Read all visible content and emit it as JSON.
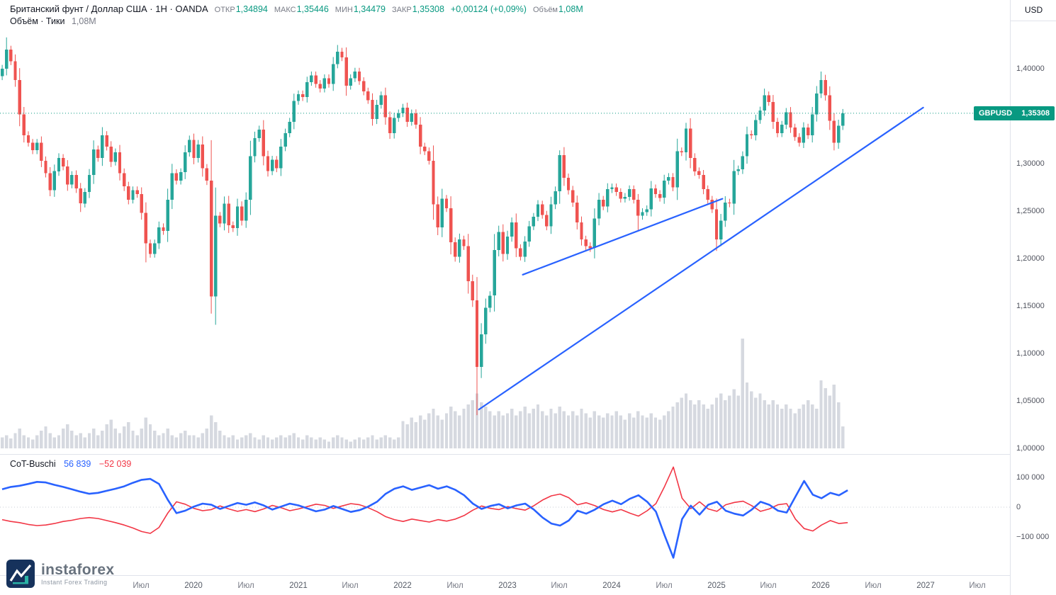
{
  "header": {
    "title": "Британский фунт / Доллар США · 1Н · OANDA",
    "ohlc": [
      {
        "label": "ОТКР",
        "value": "1,34894"
      },
      {
        "label": "МАКС",
        "value": "1,35446"
      },
      {
        "label": "МИН",
        "value": "1,34479"
      },
      {
        "label": "ЗАКР",
        "value": "1,35308"
      }
    ],
    "change": "+0,00124 (+0,09%)",
    "volume_label": "Объём",
    "volume_value": "1,08М",
    "volume_legend": "Объём · Тики",
    "volume_legend_value": "1,08М"
  },
  "price_label": {
    "symbol": "GBPUSD",
    "value": "1,35308"
  },
  "axis_currency": "USD",
  "cot_legend": {
    "name": "CoT-Buschi",
    "blue_value": "56 839",
    "red_value": "−52 039"
  },
  "logo": {
    "name": "instaforex",
    "tagline": "Instant Forex Trading"
  },
  "colors": {
    "candle_up": "#26a69a",
    "candle_down": "#ef5350",
    "accent_teal": "#089981",
    "accent_red": "#f23645",
    "cot_blue": "#2962ff",
    "trend_blue": "#2962ff",
    "volume_bar": "#c8ccd6",
    "axis_border": "#e0e3eb",
    "badge_bg": "#089981"
  },
  "chart_data": {
    "type": "candlestick",
    "symbol": "GBPUSD",
    "timeframe": "1Н",
    "exchange": "OANDA",
    "open": 1.34894,
    "high": 1.35446,
    "low": 1.34479,
    "close": 1.35308,
    "change": 0.00124,
    "change_pct": 0.09,
    "volume": "1,08М",
    "t_start": 2018.17,
    "t_step_years": 0.0416667,
    "open_first": 1.392,
    "closes": [
      1.4,
      1.42,
      1.408,
      1.388,
      1.352,
      1.33,
      1.322,
      1.314,
      1.322,
      1.303,
      1.29,
      1.272,
      1.292,
      1.306,
      1.297,
      1.278,
      1.288,
      1.274,
      1.258,
      1.27,
      1.288,
      1.315,
      1.306,
      1.33,
      1.318,
      1.302,
      1.312,
      1.29,
      1.276,
      1.262,
      1.272,
      1.268,
      1.248,
      1.216,
      1.205,
      1.216,
      1.233,
      1.229,
      1.262,
      1.29,
      1.282,
      1.291,
      1.312,
      1.325,
      1.306,
      1.32,
      1.295,
      1.282,
      1.16,
      1.245,
      1.237,
      1.258,
      1.235,
      1.232,
      1.255,
      1.24,
      1.262,
      1.308,
      1.327,
      1.336,
      1.308,
      1.292,
      1.304,
      1.295,
      1.318,
      1.332,
      1.344,
      1.366,
      1.373,
      1.37,
      1.386,
      1.393,
      1.384,
      1.379,
      1.39,
      1.384,
      1.405,
      1.418,
      1.412,
      1.382,
      1.39,
      1.397,
      1.387,
      1.376,
      1.367,
      1.347,
      1.362,
      1.372,
      1.349,
      1.332,
      1.348,
      1.353,
      1.359,
      1.344,
      1.353,
      1.341,
      1.318,
      1.313,
      1.303,
      1.257,
      1.233,
      1.263,
      1.253,
      1.217,
      1.202,
      1.22,
      1.213,
      1.176,
      1.156,
      1.086,
      1.12,
      1.148,
      1.161,
      1.209,
      1.228,
      1.205,
      1.223,
      1.238,
      1.211,
      1.202,
      1.218,
      1.234,
      1.244,
      1.257,
      1.246,
      1.234,
      1.257,
      1.271,
      1.309,
      1.285,
      1.272,
      1.259,
      1.238,
      1.22,
      1.213,
      1.211,
      1.242,
      1.262,
      1.255,
      1.273,
      1.275,
      1.27,
      1.263,
      1.265,
      1.273,
      1.262,
      1.245,
      1.249,
      1.252,
      1.274,
      1.268,
      1.264,
      1.282,
      1.286,
      1.275,
      1.313,
      1.312,
      1.337,
      1.306,
      1.292,
      1.288,
      1.273,
      1.262,
      1.252,
      1.22,
      1.24,
      1.259,
      1.258,
      1.292,
      1.294,
      1.308,
      1.331,
      1.33,
      1.346,
      1.356,
      1.372,
      1.365,
      1.344,
      1.332,
      1.341,
      1.354,
      1.338,
      1.328,
      1.322,
      1.338,
      1.33,
      1.352,
      1.374,
      1.388,
      1.372,
      1.345,
      1.322,
      1.34,
      1.353
    ],
    "wick_overrides": {
      "1": {
        "h": 1.433
      },
      "18": {
        "l": 1.249
      },
      "33": {
        "l": 1.196
      },
      "48": {
        "l": 1.142
      },
      "77": {
        "h": 1.425
      },
      "109": {
        "l": 1.035
      },
      "128": {
        "h": 1.314
      },
      "146": {
        "l": 1.23
      },
      "157": {
        "h": 1.343
      },
      "164": {
        "l": 1.208
      },
      "175": {
        "h": 1.379
      },
      "188": {
        "h": 1.397
      }
    },
    "volume_rel": [
      0.1,
      0.12,
      0.09,
      0.14,
      0.18,
      0.12,
      0.1,
      0.08,
      0.12,
      0.16,
      0.2,
      0.14,
      0.1,
      0.12,
      0.18,
      0.22,
      0.16,
      0.12,
      0.14,
      0.1,
      0.14,
      0.18,
      0.12,
      0.16,
      0.22,
      0.26,
      0.18,
      0.14,
      0.2,
      0.24,
      0.16,
      0.12,
      0.18,
      0.28,
      0.22,
      0.16,
      0.12,
      0.14,
      0.18,
      0.12,
      0.1,
      0.14,
      0.16,
      0.12,
      0.12,
      0.1,
      0.14,
      0.18,
      0.3,
      0.24,
      0.16,
      0.12,
      0.1,
      0.12,
      0.08,
      0.1,
      0.12,
      0.14,
      0.1,
      0.08,
      0.12,
      0.1,
      0.08,
      0.1,
      0.12,
      0.1,
      0.12,
      0.14,
      0.1,
      0.08,
      0.12,
      0.1,
      0.08,
      0.1,
      0.08,
      0.06,
      0.1,
      0.12,
      0.1,
      0.08,
      0.06,
      0.08,
      0.1,
      0.08,
      0.1,
      0.12,
      0.08,
      0.1,
      0.12,
      0.1,
      0.08,
      0.1,
      0.25,
      0.22,
      0.28,
      0.24,
      0.3,
      0.26,
      0.32,
      0.36,
      0.3,
      0.26,
      0.32,
      0.38,
      0.34,
      0.3,
      0.36,
      0.4,
      0.44,
      0.5,
      0.42,
      0.38,
      0.34,
      0.3,
      0.34,
      0.3,
      0.32,
      0.36,
      0.3,
      0.34,
      0.38,
      0.32,
      0.36,
      0.4,
      0.34,
      0.3,
      0.36,
      0.32,
      0.38,
      0.34,
      0.3,
      0.34,
      0.3,
      0.36,
      0.32,
      0.28,
      0.34,
      0.3,
      0.28,
      0.32,
      0.3,
      0.34,
      0.3,
      0.26,
      0.32,
      0.28,
      0.34,
      0.3,
      0.28,
      0.32,
      0.28,
      0.26,
      0.3,
      0.34,
      0.38,
      0.42,
      0.46,
      0.5,
      0.44,
      0.4,
      0.44,
      0.4,
      0.36,
      0.4,
      0.46,
      0.5,
      0.44,
      0.48,
      0.54,
      0.48,
      1.0,
      0.6,
      0.52,
      0.46,
      0.5,
      0.44,
      0.4,
      0.44,
      0.4,
      0.36,
      0.4,
      0.36,
      0.32,
      0.36,
      0.4,
      0.44,
      0.4,
      0.36,
      0.62,
      0.55,
      0.48,
      0.58,
      0.42,
      0.2
    ],
    "trendlines": [
      {
        "t1": 2022.73,
        "p1": 1.041,
        "t2": 2026.98,
        "p2": 1.359
      },
      {
        "t1": 2023.15,
        "p1": 1.183,
        "t2": 2025.06,
        "p2": 1.263
      }
    ],
    "close_line_price": 1.35308,
    "price_axis": {
      "ticks": [
        {
          "label": "1,40000",
          "price": 1.4
        },
        {
          "label": "1,30000",
          "price": 1.3
        },
        {
          "label": "1,25000",
          "price": 1.25
        },
        {
          "label": "1,20000",
          "price": 1.2
        },
        {
          "label": "1,15000",
          "price": 1.15
        },
        {
          "label": "1,10000",
          "price": 1.1
        },
        {
          "label": "1,05000",
          "price": 1.05
        },
        {
          "label": "1,00000",
          "price": 1.0
        }
      ]
    },
    "time_ticks": [
      {
        "label": "Июл",
        "t": 2019.5,
        "major": false
      },
      {
        "label": "2020",
        "t": 2020,
        "major": true
      },
      {
        "label": "Июл",
        "t": 2020.5,
        "major": false
      },
      {
        "label": "2021",
        "t": 2021,
        "major": true
      },
      {
        "label": "Июл",
        "t": 2021.5,
        "major": false
      },
      {
        "label": "2022",
        "t": 2022,
        "major": true
      },
      {
        "label": "Июл",
        "t": 2022.5,
        "major": false
      },
      {
        "label": "2023",
        "t": 2023,
        "major": true
      },
      {
        "label": "Июл",
        "t": 2023.5,
        "major": false
      },
      {
        "label": "2024",
        "t": 2024,
        "major": true
      },
      {
        "label": "Июл",
        "t": 2024.5,
        "major": false
      },
      {
        "label": "2025",
        "t": 2025,
        "major": true
      },
      {
        "label": "Июл",
        "t": 2025.5,
        "major": false
      },
      {
        "label": "2026",
        "t": 2026,
        "major": true
      },
      {
        "label": "Июл",
        "t": 2026.5,
        "major": false
      },
      {
        "label": "2027",
        "t": 2027,
        "major": true
      },
      {
        "label": "Июл",
        "t": 2027.5,
        "major": false
      }
    ],
    "cot": {
      "title": "CoT-Buschi",
      "blue_last": 56839,
      "red_last": -52039,
      "axis_ticks": [
        {
          "label": "100 000",
          "v": 100
        },
        {
          "label": "0",
          "v": 0
        },
        {
          "label": "−100 000",
          "v": -100
        }
      ],
      "blue_k": [
        60,
        68,
        72,
        78,
        85,
        83,
        75,
        68,
        60,
        52,
        45,
        48,
        55,
        62,
        70,
        82,
        92,
        95,
        78,
        25,
        -20,
        -12,
        2,
        12,
        8,
        -6,
        4,
        14,
        8,
        16,
        6,
        -8,
        2,
        12,
        6,
        -4,
        -14,
        -8,
        4,
        -6,
        -16,
        -10,
        2,
        18,
        45,
        62,
        70,
        58,
        66,
        74,
        62,
        70,
        58,
        40,
        12,
        -6,
        4,
        10,
        -4,
        6,
        12,
        -8,
        -35,
        -55,
        -62,
        -45,
        -12,
        -22,
        -8,
        10,
        22,
        10,
        28,
        40,
        18,
        -15,
        -95,
        -170,
        -40,
        5,
        -25,
        8,
        18,
        -12,
        -22,
        -28,
        -8,
        18,
        8,
        -12,
        -18,
        35,
        88,
        42,
        30,
        48,
        40,
        57
      ],
      "red_k": [
        -42,
        -48,
        -52,
        -58,
        -62,
        -60,
        -55,
        -48,
        -44,
        -38,
        -35,
        -38,
        -45,
        -52,
        -60,
        -70,
        -82,
        -88,
        -68,
        -20,
        18,
        10,
        -4,
        -12,
        -8,
        4,
        -6,
        -14,
        -8,
        -15,
        -6,
        6,
        -2,
        -12,
        -6,
        2,
        10,
        6,
        -4,
        4,
        12,
        8,
        -2,
        -15,
        -32,
        -42,
        -48,
        -40,
        -45,
        -50,
        -42,
        -47,
        -40,
        -28,
        -10,
        4,
        -4,
        -8,
        2,
        -5,
        -10,
        5,
        24,
        38,
        44,
        32,
        8,
        15,
        5,
        -8,
        -16,
        -8,
        -20,
        -30,
        -12,
        12,
        70,
        135,
        30,
        -5,
        18,
        -6,
        -14,
        8,
        16,
        20,
        5,
        -14,
        -6,
        8,
        12,
        -40,
        -72,
        -80,
        -60,
        -45,
        -55,
        -52
      ]
    }
  }
}
